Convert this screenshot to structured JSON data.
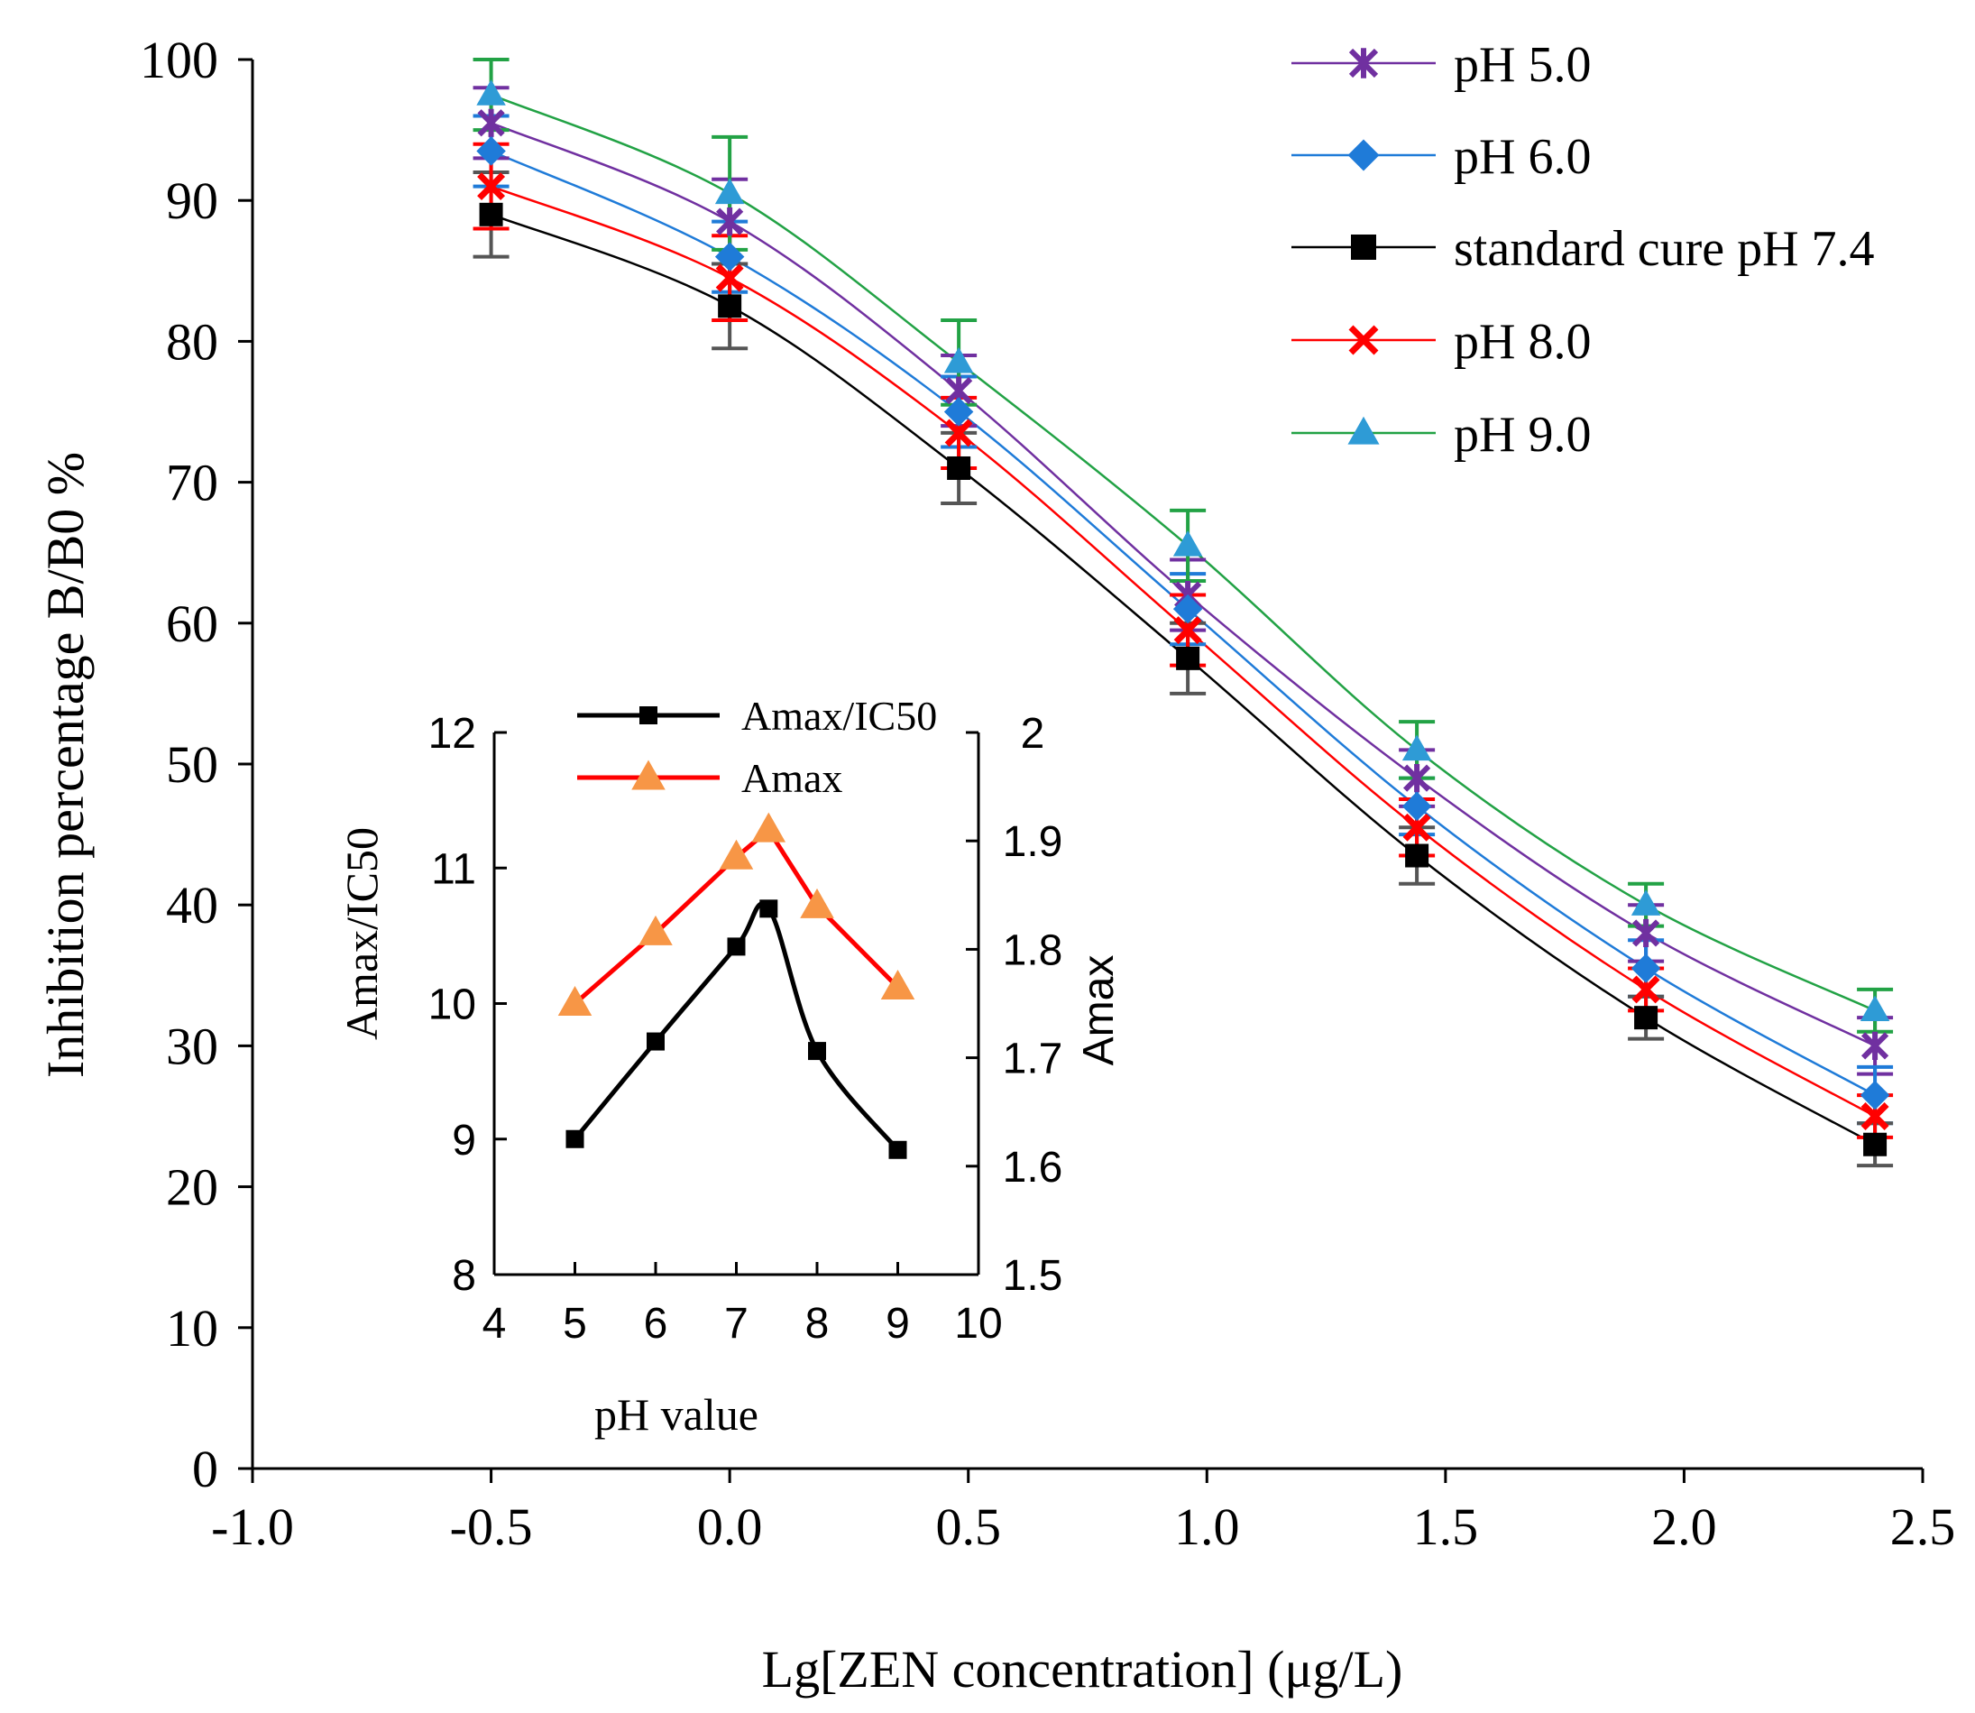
{
  "chart_data": [
    {
      "type": "line",
      "xlabel": "Lg[ZEN concentration] (μg/L)",
      "ylabel": "Inhibition percentage B/B0 %",
      "xlim": [
        -1.0,
        2.5
      ],
      "ylim": [
        0,
        100
      ],
      "xticks": [
        "-1.0",
        "-0.5",
        "0.0",
        "0.5",
        "1.0",
        "1.5",
        "2.0",
        "2.5"
      ],
      "yticks": [
        "0",
        "10",
        "20",
        "30",
        "40",
        "50",
        "60",
        "70",
        "80",
        "90",
        "100"
      ],
      "x": [
        -0.5,
        0.0,
        0.48,
        0.96,
        1.44,
        1.92,
        2.4
      ],
      "legend_position": "top-right",
      "series": [
        {
          "name": "pH 5.0",
          "color": "#7030A0",
          "marker": "asterisk",
          "values": [
            95.5,
            88.5,
            76.5,
            62.0,
            49.0,
            38.0,
            30.0
          ],
          "errors": [
            2.5,
            3.0,
            2.5,
            2.5,
            2.0,
            2.0,
            2.0
          ]
        },
        {
          "name": "pH 6.0",
          "color": "#1F7BD8",
          "marker": "diamond",
          "values": [
            93.5,
            86.0,
            75.0,
            61.0,
            47.0,
            35.5,
            26.5
          ],
          "errors": [
            2.5,
            2.5,
            2.5,
            2.5,
            2.0,
            2.0,
            2.0
          ]
        },
        {
          "name": "standard cure pH 7.4",
          "color": "#000000",
          "marker": "square",
          "values": [
            89.0,
            82.5,
            71.0,
            57.5,
            43.5,
            32.0,
            23.0
          ],
          "errors": [
            3.0,
            3.0,
            2.5,
            2.5,
            2.0,
            1.5,
            1.5
          ]
        },
        {
          "name": "pH 8.0",
          "color": "#FF0000",
          "marker": "x",
          "values": [
            91.0,
            84.5,
            73.5,
            59.5,
            45.5,
            34.0,
            25.0
          ],
          "errors": [
            3.0,
            3.0,
            2.5,
            2.5,
            2.0,
            1.5,
            1.5
          ]
        },
        {
          "name": "pH 9.0",
          "color": "#22A245",
          "marker": "triangle",
          "marker_color": "#2E9BD6",
          "values": [
            97.5,
            90.5,
            78.5,
            65.5,
            51.0,
            40.0,
            32.5
          ],
          "errors": [
            2.5,
            4.0,
            3.0,
            2.5,
            2.0,
            1.5,
            1.5
          ]
        }
      ]
    },
    {
      "type": "line",
      "xlabel": "pH value",
      "ylabel": "Amax/IC50",
      "y2label": "Amax",
      "xlim": [
        4,
        10
      ],
      "ylim": [
        8,
        12
      ],
      "y2lim": [
        1.5,
        2.0
      ],
      "xticks": [
        "4",
        "5",
        "6",
        "7",
        "8",
        "9",
        "10"
      ],
      "yticks": [
        "8",
        "9",
        "10",
        "11",
        "12"
      ],
      "y2ticks": [
        "1.5",
        "1.6",
        "1.7",
        "1.8",
        "1.9",
        "2"
      ],
      "legend_position": "top-left",
      "series": [
        {
          "name": "Amax/IC50",
          "axis": "left",
          "color": "#000000",
          "marker": "square",
          "x": [
            5.0,
            6.0,
            7.0,
            7.4,
            8.0,
            9.0
          ],
          "values": [
            9.0,
            9.72,
            10.42,
            10.7,
            9.65,
            8.92
          ]
        },
        {
          "name": "Amax",
          "axis": "right",
          "color": "#FF0000",
          "marker": "triangle",
          "marker_color": "#F79646",
          "x": [
            5.0,
            6.0,
            7.0,
            7.4,
            8.0,
            9.0
          ],
          "values": [
            1.75,
            1.815,
            1.885,
            1.91,
            1.84,
            1.765
          ]
        }
      ]
    }
  ]
}
